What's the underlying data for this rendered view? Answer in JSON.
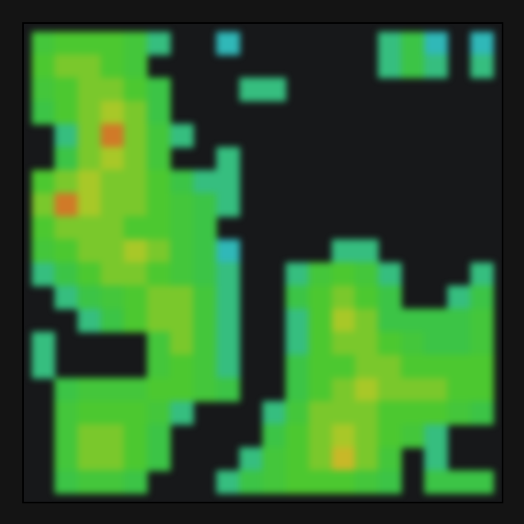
{
  "chart_data": {
    "type": "heatmap",
    "tick_labels": false,
    "xlim": [
      0,
      20
    ],
    "ylim": [
      0,
      20
    ],
    "zlim": [
      0,
      10
    ],
    "cells": [
      [
        4,
        5,
        5,
        5,
        4,
        2,
        null,
        null,
        1,
        null,
        null,
        null,
        null,
        null,
        null,
        2,
        3,
        1,
        null,
        1
      ],
      [
        5,
        6,
        6,
        5,
        4,
        null,
        null,
        null,
        null,
        null,
        null,
        null,
        null,
        null,
        null,
        2,
        3,
        2,
        null,
        2
      ],
      [
        4,
        5,
        6,
        6,
        5,
        3,
        null,
        null,
        null,
        2,
        2,
        null,
        null,
        null,
        null,
        null,
        null,
        null,
        null,
        null
      ],
      [
        3,
        5,
        6,
        7,
        6,
        3,
        null,
        null,
        null,
        null,
        null,
        null,
        null,
        null,
        null,
        null,
        null,
        null,
        null,
        null
      ],
      [
        null,
        2,
        6,
        9,
        6,
        4,
        2,
        null,
        null,
        null,
        null,
        null,
        null,
        null,
        null,
        null,
        null,
        null,
        null,
        null
      ],
      [
        null,
        3,
        6,
        7,
        6,
        4,
        null,
        null,
        2,
        null,
        null,
        null,
        null,
        null,
        null,
        null,
        null,
        null,
        null,
        null
      ],
      [
        5,
        6,
        7,
        6,
        6,
        5,
        3,
        2,
        2,
        null,
        null,
        null,
        null,
        null,
        null,
        null,
        null,
        null,
        null,
        null
      ],
      [
        6,
        9,
        7,
        6,
        6,
        5,
        4,
        3,
        2,
        null,
        null,
        null,
        null,
        null,
        null,
        null,
        null,
        null,
        null,
        null
      ],
      [
        5,
        6,
        6,
        6,
        5,
        5,
        4,
        3,
        null,
        null,
        null,
        null,
        null,
        null,
        null,
        null,
        null,
        null,
        null,
        null
      ],
      [
        4,
        5,
        6,
        6,
        7,
        6,
        4,
        3,
        1,
        null,
        null,
        null,
        null,
        2,
        2,
        null,
        null,
        null,
        null,
        null
      ],
      [
        2,
        3,
        5,
        6,
        6,
        5,
        4,
        3,
        2,
        null,
        null,
        2,
        4,
        5,
        4,
        2,
        null,
        null,
        null,
        2
      ],
      [
        null,
        2,
        3,
        4,
        5,
        6,
        6,
        4,
        2,
        null,
        null,
        3,
        5,
        6,
        5,
        3,
        null,
        null,
        2,
        3
      ],
      [
        null,
        null,
        2,
        3,
        5,
        6,
        6,
        4,
        2,
        null,
        null,
        2,
        5,
        7,
        6,
        3,
        3,
        3,
        3,
        4
      ],
      [
        2,
        null,
        null,
        null,
        null,
        4,
        6,
        4,
        2,
        null,
        null,
        2,
        5,
        6,
        6,
        5,
        4,
        3,
        3,
        4
      ],
      [
        2,
        null,
        null,
        null,
        null,
        4,
        5,
        4,
        2,
        null,
        null,
        3,
        5,
        5,
        6,
        6,
        5,
        5,
        5,
        5
      ],
      [
        null,
        3,
        4,
        4,
        4,
        5,
        5,
        4,
        3,
        null,
        null,
        3,
        5,
        6,
        7,
        6,
        6,
        6,
        5,
        5
      ],
      [
        null,
        4,
        5,
        5,
        5,
        4,
        2,
        null,
        null,
        null,
        2,
        4,
        6,
        6,
        6,
        5,
        5,
        5,
        4,
        3
      ],
      [
        null,
        4,
        6,
        6,
        5,
        3,
        null,
        null,
        null,
        null,
        3,
        5,
        6,
        7,
        6,
        5,
        4,
        2,
        null,
        null
      ],
      [
        null,
        4,
        6,
        6,
        5,
        3,
        null,
        null,
        null,
        2,
        4,
        5,
        6,
        8,
        6,
        4,
        null,
        2,
        null,
        null
      ],
      [
        null,
        3,
        4,
        4,
        3,
        null,
        null,
        null,
        2,
        3,
        4,
        5,
        5,
        5,
        4,
        3,
        null,
        3,
        3,
        3
      ]
    ]
  }
}
